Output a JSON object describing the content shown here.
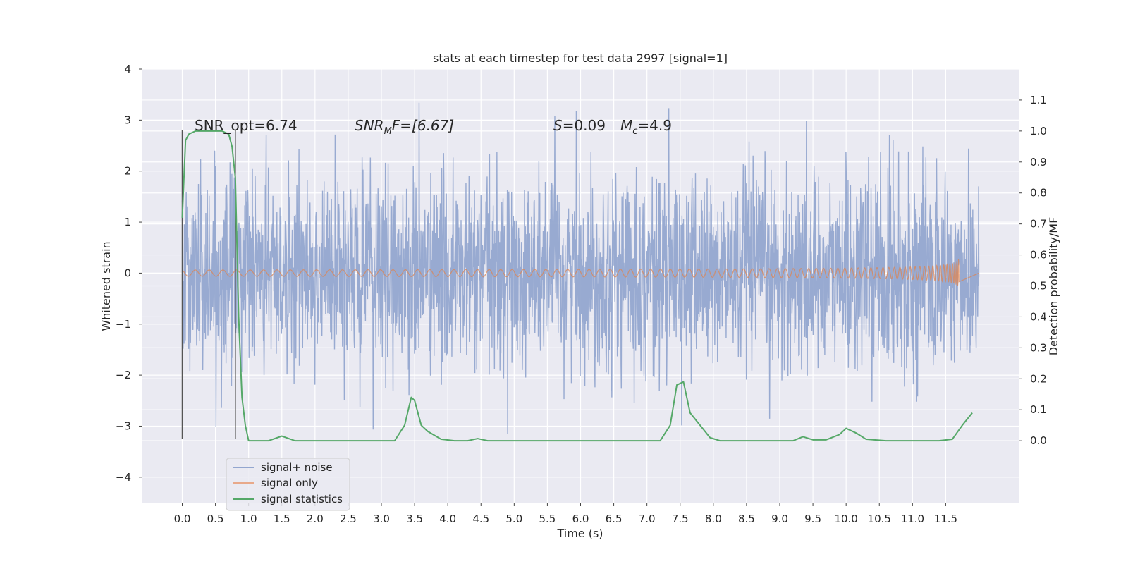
{
  "chart_data": {
    "type": "line",
    "title": "stats at each timestep for test data 2997 [signal=1]",
    "xlabel": "Time (s)",
    "ylabel": "Whitened strain",
    "y2label": "Detection probability/MF",
    "xlim": [
      -0.6,
      12.6
    ],
    "ylim": [
      -4.5,
      4.0
    ],
    "y2lim": [
      -0.2,
      1.2
    ],
    "xticks": [
      "0.0",
      "0.5",
      "1.0",
      "1.5",
      "2.0",
      "2.5",
      "3.0",
      "3.5",
      "4.0",
      "4.5",
      "5.0",
      "5.5",
      "6.0",
      "6.5",
      "7.0",
      "7.5",
      "8.0",
      "8.5",
      "9.0",
      "9.5",
      "10.0",
      "10.5",
      "11.0",
      "11.5"
    ],
    "yticks": [
      "4",
      "3",
      "2",
      "1",
      "0",
      "−1",
      "−2",
      "−3",
      "−4"
    ],
    "y2ticks": [
      "1.1",
      "1.0",
      "0.9",
      "0.8",
      "0.7",
      "0.6",
      "0.5",
      "0.4",
      "0.3",
      "0.2",
      "0.1",
      "0.0"
    ],
    "grid": true,
    "legend_position": "bottom-left",
    "annotations": {
      "snr_opt": "SNR_opt=6.74",
      "snr_mf_main": "SNR",
      "snr_mf_sub": "M",
      "snr_mf_rest": "F=[6.67]",
      "s_main": "S",
      "s_rest": "=0.09",
      "mc_main": "M",
      "mc_sub": "c",
      "mc_rest": "=4.9"
    },
    "series": [
      {
        "name": "signal+ noise",
        "color": "#93a6cf",
        "x_range": [
          0.0,
          12.0
        ],
        "envelope": [
          -2.8,
          3.6
        ]
      },
      {
        "name": "signal only",
        "color": "#dd8452",
        "x_range": [
          0.0,
          11.7
        ],
        "peak_amplitude": 0.5
      },
      {
        "name": "signal statistics",
        "color": "#55a868",
        "x": [
          0.0,
          0.05,
          0.1,
          0.2,
          0.3,
          0.4,
          0.5,
          0.6,
          0.7,
          0.75,
          0.8,
          0.85,
          0.9,
          0.95,
          1.0,
          1.1,
          1.3,
          1.5,
          1.7,
          2.0,
          2.5,
          3.0,
          3.2,
          3.35,
          3.45,
          3.5,
          3.6,
          3.7,
          3.9,
          4.1,
          4.3,
          4.45,
          4.6,
          5.0,
          5.5,
          6.0,
          6.5,
          7.0,
          7.2,
          7.35,
          7.45,
          7.55,
          7.65,
          7.8,
          7.95,
          8.1,
          8.5,
          9.0,
          9.2,
          9.35,
          9.5,
          9.7,
          9.9,
          10.0,
          10.15,
          10.3,
          10.6,
          11.0,
          11.4,
          11.6,
          11.75,
          11.9
        ],
        "y": [
          0.72,
          0.97,
          0.99,
          1.0,
          1.0,
          1.0,
          1.0,
          1.0,
          0.99,
          0.95,
          0.85,
          0.4,
          0.14,
          0.05,
          0.0,
          0.0,
          0.0,
          0.015,
          0.0,
          0.0,
          0.0,
          0.0,
          0.0,
          0.05,
          0.14,
          0.13,
          0.05,
          0.03,
          0.005,
          0.0,
          0.0,
          0.007,
          0.0,
          0.0,
          0.0,
          0.0,
          0.0,
          0.0,
          0.0,
          0.05,
          0.18,
          0.19,
          0.09,
          0.05,
          0.01,
          0.0,
          0.0,
          0.0,
          0.0,
          0.013,
          0.003,
          0.003,
          0.02,
          0.04,
          0.025,
          0.005,
          0.0,
          0.0,
          0.0,
          0.005,
          0.05,
          0.09
        ]
      }
    ],
    "vertical_lines_x": [
      0.0,
      0.8
    ]
  }
}
